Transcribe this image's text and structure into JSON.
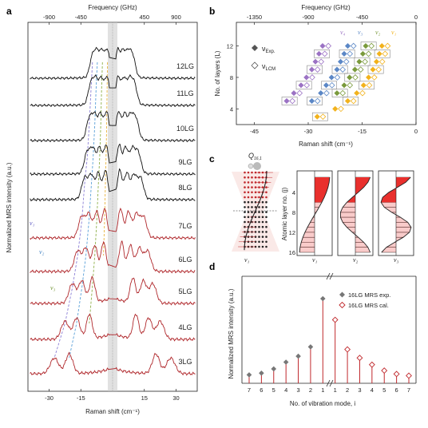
{
  "panel_labels": {
    "a": "a",
    "b": "b",
    "c": "c",
    "d": "d"
  },
  "panel_a": {
    "top_axis_label": "Frequency (GHz)",
    "top_ticks": [
      "-900",
      "-450",
      "450",
      "900"
    ],
    "bottom_axis_label": "Raman shift (cm⁻¹)",
    "bottom_ticks": [
      "-30",
      "-15",
      "15",
      "30"
    ],
    "ylabel": "Normalized MRS intensity (a.u.)",
    "nu_marks": [
      "ν₁",
      "ν₂",
      "ν₃"
    ],
    "colors": {
      "black_traces": "#111111",
      "red_traces": "#b0282c",
      "break_band": "#c8c8c8",
      "guide1": "#8b7fd6",
      "guide2": "#5aa0d8",
      "guide3": "#8fb04a",
      "guide4": "#e8b440"
    }
  },
  "panel_b": {
    "top_axis_label": "Frequency (GHz)",
    "top_ticks": [
      "-1350",
      "-900",
      "-450",
      "0"
    ],
    "bottom_axis_label": "Raman shift (cm⁻¹)",
    "bottom_ticks": [
      "-45",
      "-30",
      "-15",
      "0"
    ],
    "ylabel": "No. of layers (L)",
    "y_ticks": [
      "4",
      "8",
      "12"
    ],
    "legend": {
      "exp": "ν",
      "exp_sub": "Exp.",
      "lcm": "ν",
      "lcm_sub": "LCM"
    },
    "mode_labels": [
      "ν₄",
      "ν₃",
      "ν₂",
      "ν₁"
    ],
    "colors": {
      "nu1": "#f2b21c",
      "nu2": "#7a9a3c",
      "nu3": "#5b87c6",
      "nu4": "#9b72c4"
    }
  },
  "panel_c": {
    "q_label": "Q",
    "q_sub": "16,1",
    "ylabel": "Atomic layer no. (j)",
    "y_ticks": [
      "4",
      "8",
      "12",
      "16"
    ],
    "mode_labels": [
      "ν₁",
      "ν₁",
      "ν₂",
      "ν₃"
    ]
  },
  "panel_d": {
    "xlabel": "No. of vibration mode, i",
    "ylabel": "Normalized MRS intensity (a.u.)",
    "legend_exp": "16LG MRS exp.",
    "legend_cal": "16LG MRS cal.",
    "x_ticks_left": [
      "7",
      "6",
      "5",
      "4",
      "3",
      "2",
      "1"
    ],
    "x_ticks_right": [
      "1",
      "2",
      "3",
      "4",
      "5",
      "6",
      "7"
    ]
  },
  "chart_data": [
    {
      "type": "line",
      "panel": "a",
      "xlabel": "Raman shift (cm⁻¹)",
      "ylabel": "Normalized MRS intensity (a.u.)",
      "x_ticks": [
        -30,
        -15,
        15,
        30
      ],
      "xlim": [
        -40,
        40
      ],
      "series": [
        {
          "name": "12LG",
          "peaks": [
            -9.5,
            -7.2,
            -4.8,
            -2.4,
            2.4,
            4.8,
            7.2,
            9.5
          ]
        },
        {
          "name": "11LG",
          "peaks": [
            -10.2,
            -7.8,
            -5.2,
            -2.6,
            2.6,
            5.2,
            7.8,
            10.2
          ]
        },
        {
          "name": "10LG",
          "peaks": [
            -11.0,
            -8.4,
            -5.6,
            -2.8,
            2.8,
            5.6,
            8.4,
            11.0
          ]
        },
        {
          "name": "9LG",
          "peaks": [
            -12.0,
            -9.2,
            -6.1,
            -3.1,
            3.1,
            6.1,
            9.2,
            12.0
          ]
        },
        {
          "name": "8LG",
          "peaks": [
            -13.2,
            -10.0,
            -6.7,
            -3.4,
            3.4,
            6.7,
            10.0,
            13.2
          ]
        },
        {
          "name": "7LG",
          "peaks": [
            -14.6,
            -11.2,
            -7.5,
            -3.8,
            3.8,
            7.5,
            11.2,
            14.6
          ]
        },
        {
          "name": "6LG",
          "peaks": [
            -16.5,
            -12.6,
            -8.4,
            -4.3,
            4.3,
            8.4,
            12.6,
            16.5
          ]
        },
        {
          "name": "5LG",
          "peaks": [
            -19.0,
            -14.5,
            -9.6,
            9.6,
            14.5,
            19.0
          ]
        },
        {
          "name": "4LG",
          "peaks": [
            -22.5,
            -17.0,
            -11.0,
            11.0,
            17.0,
            22.5
          ]
        },
        {
          "name": "3LG",
          "peaks": [
            -27.5,
            -20.5,
            20.5,
            27.5
          ]
        }
      ]
    },
    {
      "type": "scatter",
      "panel": "b",
      "xlabel": "Raman shift (cm⁻¹)",
      "ylabel": "No. of layers (L)",
      "xlim": [
        -50,
        0
      ],
      "ylim": [
        2,
        15
      ],
      "series": [
        {
          "name": "ν₁ exp",
          "points": [
            [
              -27.5,
              3
            ],
            [
              -22.5,
              4
            ],
            [
              -19.0,
              5
            ],
            [
              -16.5,
              6
            ],
            [
              -14.6,
              7
            ],
            [
              -13.2,
              8
            ],
            [
              -12.0,
              9
            ],
            [
              -11.0,
              10
            ],
            [
              -10.2,
              11
            ],
            [
              -9.5,
              12
            ]
          ]
        },
        {
          "name": "ν₂ exp",
          "points": [
            [
              -22.0,
              6
            ],
            [
              -20.0,
              7
            ],
            [
              -18.5,
              8
            ],
            [
              -17.0,
              9
            ],
            [
              -15.8,
              10
            ],
            [
              -14.8,
              11
            ],
            [
              -14.0,
              12
            ]
          ]
        },
        {
          "name": "ν₃ exp",
          "points": [
            [
              -29.0,
              5
            ],
            [
              -26.5,
              6
            ],
            [
              -25.0,
              7
            ],
            [
              -23.5,
              8
            ],
            [
              -22.0,
              9
            ],
            [
              -21.0,
              10
            ],
            [
              -20.0,
              11
            ],
            [
              -19.0,
              12
            ]
          ]
        },
        {
          "name": "ν₄ exp",
          "points": [
            [
              -36.0,
              5
            ],
            [
              -34.0,
              6
            ],
            [
              -32.0,
              7
            ],
            [
              -30.5,
              8
            ],
            [
              -29.0,
              9
            ],
            [
              -28.0,
              10
            ],
            [
              -27.0,
              11
            ],
            [
              -26.0,
              12
            ]
          ]
        }
      ]
    },
    {
      "type": "bar",
      "panel": "d",
      "xlabel": "No. of vibration mode, i",
      "ylabel": "Normalized MRS intensity (a.u.)",
      "categories": [
        "7",
        "6",
        "5",
        "4",
        "3",
        "2",
        "1",
        "1",
        "2",
        "3",
        "4",
        "5",
        "6",
        "7"
      ],
      "series": [
        {
          "name": "16LG MRS exp.",
          "values": [
            0.1,
            0.12,
            0.17,
            0.25,
            0.32,
            0.43,
            1.0,
            null,
            null,
            null,
            null,
            null,
            null,
            null
          ]
        },
        {
          "name": "16LG MRS cal.",
          "values": [
            null,
            null,
            null,
            null,
            null,
            null,
            null,
            0.75,
            0.4,
            0.3,
            0.22,
            0.15,
            0.11,
            0.09
          ]
        }
      ]
    }
  ]
}
